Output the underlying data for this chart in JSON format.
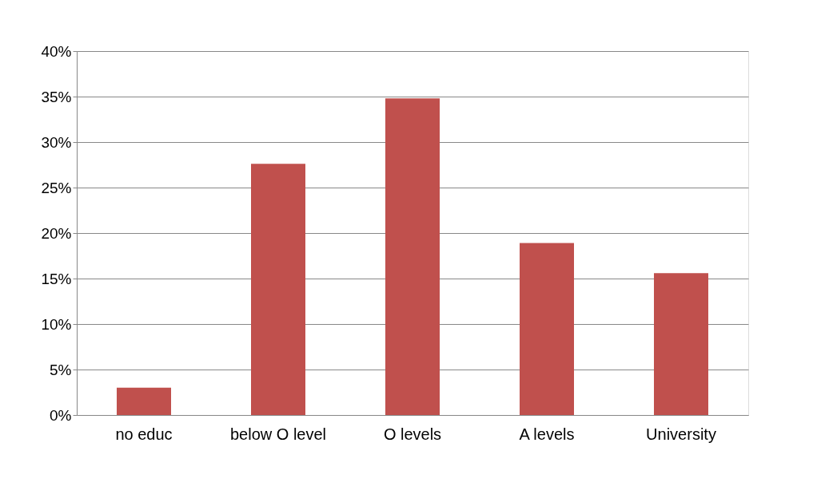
{
  "chart_data": {
    "type": "bar",
    "categories": [
      "no educ",
      "below O level",
      "O levels",
      "A levels",
      "University"
    ],
    "values": [
      3.0,
      27.6,
      34.8,
      18.9,
      15.6
    ],
    "color": "#c0504d",
    "ylim": [
      0,
      40
    ],
    "yticks": [
      {
        "value": 0,
        "label": "0%"
      },
      {
        "value": 5,
        "label": "5%"
      },
      {
        "value": 10,
        "label": "10%"
      },
      {
        "value": 15,
        "label": "15%"
      },
      {
        "value": 20,
        "label": "20%"
      },
      {
        "value": 25,
        "label": "25%"
      },
      {
        "value": 30,
        "label": "30%"
      },
      {
        "value": 35,
        "label": "35%"
      },
      {
        "value": 40,
        "label": "40%"
      }
    ],
    "grid": "y"
  }
}
